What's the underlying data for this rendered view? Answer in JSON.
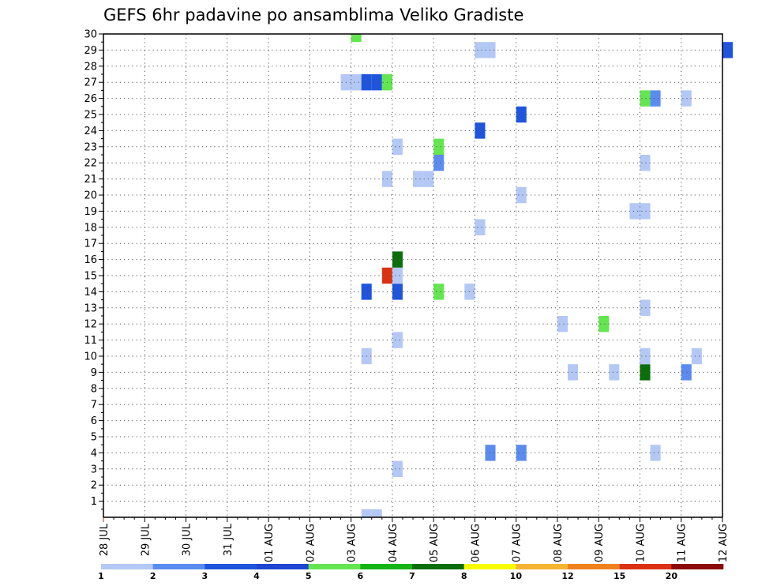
{
  "chart_data": {
    "type": "heatmap",
    "title": "GEFS 6hr padavine po ansamblima Veliko Gradiste",
    "xlabel": "",
    "ylabel": "",
    "x_tick_labels": [
      "28 JUL",
      "29 JUL",
      "30 JUL",
      "31 JUL",
      "01 AUG",
      "02 AUG",
      "03 AUG",
      "04 AUG",
      "05 AUG",
      "06 AUG",
      "07 AUG",
      "08 AUG",
      "09 AUG",
      "10 AUG",
      "11 AUG",
      "12 AUG"
    ],
    "y_tick_labels": [
      "1",
      "2",
      "3",
      "4",
      "5",
      "6",
      "7",
      "8",
      "9",
      "10",
      "11",
      "12",
      "13",
      "14",
      "15",
      "16",
      "17",
      "18",
      "19",
      "20",
      "21",
      "22",
      "23",
      "24",
      "25",
      "26",
      "27",
      "28",
      "29",
      "30"
    ],
    "xlim_days": [
      0,
      15
    ],
    "ylim_members": [
      0,
      30
    ],
    "steps_per_day": 4,
    "grid": true,
    "legend_placement": "bottom",
    "legend": {
      "thresholds": [
        "1",
        "2",
        "3",
        "4",
        "5",
        "6",
        "7",
        "8",
        "10",
        "12",
        "15",
        "20"
      ],
      "colors": [
        "#b4c8f5",
        "#5a8cf0",
        "#1e55dc",
        "#1e46d2",
        "#64e650",
        "#14b414",
        "#0a6e0a",
        "#fafa00",
        "#f5b432",
        "#f0821e",
        "#dc3214",
        "#8c0a0a"
      ]
    },
    "cells": [
      {
        "member": 0,
        "step": 25,
        "color": "#b4c8f5"
      },
      {
        "member": 0,
        "step": 26,
        "color": "#b4c8f5"
      },
      {
        "member": 3,
        "step": 28,
        "color": "#b4c8f5"
      },
      {
        "member": 4,
        "step": 37,
        "color": "#5a8cf0"
      },
      {
        "member": 4,
        "step": 40,
        "color": "#5a8cf0"
      },
      {
        "member": 4,
        "step": 53,
        "color": "#b4c8f5"
      },
      {
        "member": 9,
        "step": 45,
        "color": "#b4c8f5"
      },
      {
        "member": 9,
        "step": 49,
        "color": "#b4c8f5"
      },
      {
        "member": 9,
        "step": 52,
        "color": "#0a6e0a"
      },
      {
        "member": 9,
        "step": 56,
        "color": "#5a8cf0"
      },
      {
        "member": 10,
        "step": 25,
        "color": "#b4c8f5"
      },
      {
        "member": 10,
        "step": 52,
        "color": "#b4c8f5"
      },
      {
        "member": 10,
        "step": 57,
        "color": "#b4c8f5"
      },
      {
        "member": 11,
        "step": 28,
        "color": "#b4c8f5"
      },
      {
        "member": 12,
        "step": 44,
        "color": "#b4c8f5"
      },
      {
        "member": 12,
        "step": 48,
        "color": "#64e650"
      },
      {
        "member": 13,
        "step": 52,
        "color": "#b4c8f5"
      },
      {
        "member": 14,
        "step": 25,
        "color": "#1e55dc"
      },
      {
        "member": 14,
        "step": 28,
        "color": "#1e55dc"
      },
      {
        "member": 14,
        "step": 32,
        "color": "#64e650"
      },
      {
        "member": 14,
        "step": 35,
        "color": "#b4c8f5"
      },
      {
        "member": 15,
        "step": 27,
        "color": "#dc3214"
      },
      {
        "member": 15,
        "step": 28,
        "color": "#b4c8f5"
      },
      {
        "member": 16,
        "step": 28,
        "color": "#0a6e0a"
      },
      {
        "member": 18,
        "step": 36,
        "color": "#b4c8f5"
      },
      {
        "member": 19,
        "step": 51,
        "color": "#b4c8f5"
      },
      {
        "member": 19,
        "step": 52,
        "color": "#b4c8f5"
      },
      {
        "member": 20,
        "step": 40,
        "color": "#b4c8f5"
      },
      {
        "member": 21,
        "step": 27,
        "color": "#b4c8f5"
      },
      {
        "member": 21,
        "step": 30,
        "color": "#b4c8f5"
      },
      {
        "member": 21,
        "step": 31,
        "color": "#b4c8f5"
      },
      {
        "member": 22,
        "step": 32,
        "color": "#5a8cf0"
      },
      {
        "member": 22,
        "step": 52,
        "color": "#b4c8f5"
      },
      {
        "member": 23,
        "step": 28,
        "color": "#b4c8f5"
      },
      {
        "member": 23,
        "step": 32,
        "color": "#64e650"
      },
      {
        "member": 24,
        "step": 36,
        "color": "#1e55dc"
      },
      {
        "member": 25,
        "step": 40,
        "color": "#1e55dc"
      },
      {
        "member": 26,
        "step": 52,
        "color": "#64e650"
      },
      {
        "member": 26,
        "step": 53,
        "color": "#5a8cf0"
      },
      {
        "member": 26,
        "step": 56,
        "color": "#b4c8f5"
      },
      {
        "member": 27,
        "step": 23,
        "color": "#b4c8f5"
      },
      {
        "member": 27,
        "step": 24,
        "color": "#b4c8f5"
      },
      {
        "member": 27,
        "step": 25,
        "color": "#1e55dc"
      },
      {
        "member": 27,
        "step": 26,
        "color": "#1e55dc"
      },
      {
        "member": 27,
        "step": 27,
        "color": "#64e650"
      },
      {
        "member": 29,
        "step": 36,
        "color": "#b4c8f5"
      },
      {
        "member": 29,
        "step": 37,
        "color": "#b4c8f5"
      },
      {
        "member": 29,
        "step": 60,
        "color": "#1e55dc"
      },
      {
        "member": 30,
        "step": 24,
        "color": "#64e650"
      }
    ]
  }
}
